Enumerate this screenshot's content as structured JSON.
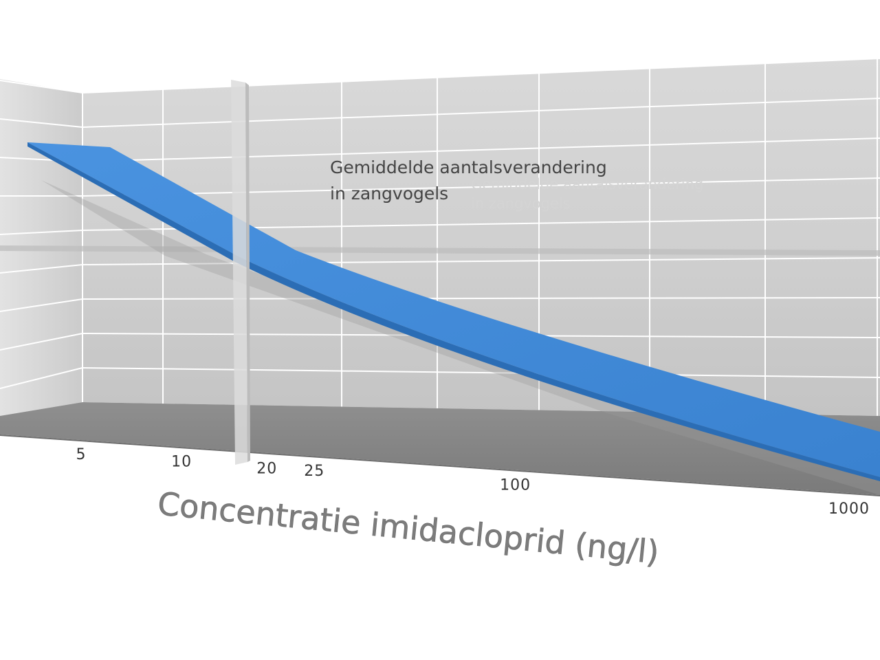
{
  "chart_data": {
    "type": "line",
    "title": "",
    "xlabel": "Concentratie imidacloprid (ng/l)",
    "ylabel": "",
    "xscale": "log",
    "x_ticks": [
      5,
      10,
      20,
      25,
      100,
      1000
    ],
    "x_tick_labels": [
      "5",
      "10",
      "20",
      "25",
      "100",
      "1000"
    ],
    "xlim": [
      3,
      2000
    ],
    "ylim": [
      -6,
      2
    ],
    "grid": true,
    "reference_line_x": 20,
    "reference_line_y": 0,
    "series": [
      {
        "name": "Gemiddelde aantalsverandering in zangvogels",
        "label_lines": [
          "Gemiddelde aantalsverandering",
          "in zangvogels"
        ],
        "color": "#3b86d6",
        "x": [
          3,
          20,
          2000
        ],
        "y": [
          1.0,
          0.0,
          -3.0
        ]
      }
    ]
  }
}
